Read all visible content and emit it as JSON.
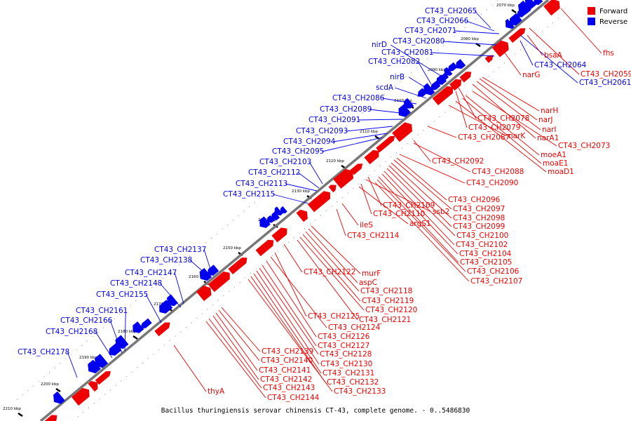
{
  "caption": "Bacillus thuringiensis serovar chinensis CT-43, complete genome. - 0..5486830",
  "legend": [
    {
      "label": "Forward",
      "color": "#ee0000"
    },
    {
      "label": "Reverse",
      "color": "#0000ee"
    }
  ],
  "colors": {
    "forward": "#ee0000",
    "reverse": "#0000ee",
    "axis": "#777777"
  },
  "ticks": [
    "2070 kbp",
    "2080 kbp",
    "2090 kbp",
    "2100 kbp",
    "2110 kbp",
    "2120 kbp",
    "2130 kbp",
    "2140 kbp",
    "2150 kbp",
    "2160 kbp",
    "2170 kbp",
    "2180 kbp",
    "2190 kbp",
    "2200 kbp",
    "2210 kbp"
  ],
  "reverse_labels": [
    "CT43_CH2065",
    "CT43_CH2066",
    "CT43_CH2071",
    "CT43_CH2080",
    "nirD",
    "CT43_CH2081",
    "CT43_CH2082",
    "nirB",
    "scdA",
    "CT43_CH2086",
    "CT43_CH2089",
    "CT43_CH2091",
    "CT43_CH2093",
    "CT43_CH2094",
    "CT43_CH2095",
    "CT43_CH2103",
    "CT43_CH2112",
    "CT43_CH2113",
    "CT43_CH2115",
    "CT43_CH2137",
    "CT43_CH2138",
    "CT43_CH2147",
    "CT43_CH2148",
    "CT43_CH2155",
    "CT43_CH2161",
    "CT43_CH2166",
    "CT43_CH2168",
    "CT43_CH2178",
    "CT43_CH2064",
    "CT43_CH2061"
  ],
  "forward_labels": [
    "fhs",
    "bsaA",
    "CT43_CH2059",
    "narG",
    "narH",
    "narJ",
    "narI",
    "narA1",
    "CT43_CH2073",
    "moeA1",
    "moaE1",
    "moaD1",
    "CT43_CH2078",
    "CT43_CH2079",
    "narK",
    "CT43_CH2087",
    "CT43_CH2092",
    "CT43_CH2088",
    "CT43_CH2090",
    "CT43_CH2096",
    "CT43_CH2097",
    "CT43_CH2098",
    "CT43_CH2099",
    "CT43_CH2100",
    "CT43_CH2102",
    "CT43_CH2104",
    "CT43_CH2105",
    "CT43_CH2106",
    "CT43_CH2107",
    "CT43_CH2109",
    "ssb2",
    "CT43_CH2110",
    "argS1",
    "ileS",
    "CT43_CH2114",
    "CT43_CH2122",
    "murF",
    "aspC",
    "CT43_CH2118",
    "CT43_CH2119",
    "CT43_CH2120",
    "CT43_CH2121",
    "CT43_CH2125",
    "CT43_CH2124",
    "CT43_CH2126",
    "CT43_CH2127",
    "CT43_CH2128",
    "CT43_CH2130",
    "CT43_CH2131",
    "CT43_CH2132",
    "CT43_CH2133",
    "CT43_CH2139",
    "CT43_CH2140",
    "CT43_CH2141",
    "CT43_CH2142",
    "CT43_CH2143",
    "CT43_CH2144",
    "thyA"
  ]
}
